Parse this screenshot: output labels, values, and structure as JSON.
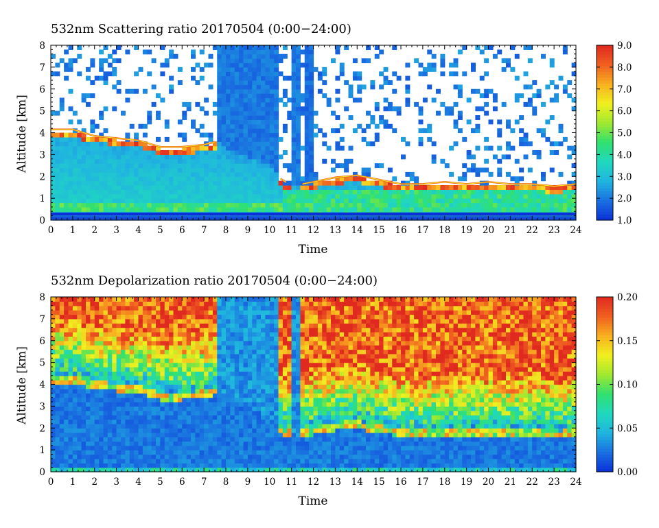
{
  "chart_data": [
    {
      "type": "heatmap",
      "title": "532nm Scattering ratio  20170504 (0:00−24:00)",
      "xlabel": "Time",
      "ylabel": "Altitude [km]",
      "xlim": [
        0,
        24
      ],
      "ylim": [
        0,
        8
      ],
      "x_ticks": [
        "0",
        "1",
        "2",
        "3",
        "4",
        "5",
        "6",
        "7",
        "8",
        "9",
        "10",
        "11",
        "12",
        "13",
        "14",
        "15",
        "16",
        "17",
        "18",
        "19",
        "20",
        "21",
        "22",
        "23",
        "24"
      ],
      "y_ticks": [
        "0",
        "1",
        "2",
        "3",
        "4",
        "5",
        "6",
        "7",
        "8"
      ],
      "colorbar": {
        "range": [
          1.0,
          9.0
        ],
        "ticks": [
          "1.0",
          "2.0",
          "3.0",
          "4.0",
          "5.0",
          "6.0",
          "7.0",
          "8.0",
          "9.0"
        ],
        "colormap": [
          "#0a30d8",
          "#1a6fe0",
          "#20b4e0",
          "#20d8c0",
          "#30e070",
          "#a0e830",
          "#f0f020",
          "#f8b020",
          "#f06020",
          "#e02a20"
        ]
      },
      "masked_color": "#ffffff",
      "features": {
        "boundary_layer_top_km": [
          [
            0,
            4.1
          ],
          [
            1,
            4.1
          ],
          [
            2,
            3.8
          ],
          [
            3,
            3.7
          ],
          [
            4,
            3.6
          ],
          [
            5,
            3.3
          ],
          [
            6,
            3.3
          ],
          [
            7,
            3.4
          ],
          [
            7.8,
            3.6
          ],
          [
            8,
            3.2
          ],
          [
            10,
            2.6
          ],
          [
            10.6,
            1.7
          ],
          [
            11.5,
            1.6
          ],
          [
            12,
            1.7
          ],
          [
            13,
            1.9
          ],
          [
            14,
            2.0
          ],
          [
            15,
            1.8
          ],
          [
            16,
            1.6
          ],
          [
            17,
            1.6
          ],
          [
            18,
            1.7
          ],
          [
            19,
            1.6
          ],
          [
            20,
            1.7
          ],
          [
            21,
            1.6
          ],
          [
            22,
            1.6
          ],
          [
            23,
            1.5
          ],
          [
            24,
            1.6
          ]
        ],
        "cloud_layers": [
          {
            "start_h": 0.0,
            "end_h": 7.6,
            "base_km": 3.3,
            "top_km": 8.0
          },
          {
            "start_h": 10.5,
            "end_h": 11.7,
            "base_km": 1.8,
            "top_km": 8.0
          },
          {
            "start_h": 12.0,
            "end_h": 21.0,
            "base_km": 1.5,
            "top_km": 8.0
          },
          {
            "start_h": 21.0,
            "end_h": 24.0,
            "base_km": 1.6,
            "top_km": 8.0
          }
        ],
        "clear_periods_h": [
          [
            7.6,
            10.5
          ],
          [
            11.0,
            11.5
          ]
        ]
      }
    },
    {
      "type": "heatmap",
      "title": "532nm Depolarization ratio  20170504 (0:00−24:00)",
      "xlabel": "Time",
      "ylabel": "Altitude [km]",
      "xlim": [
        0,
        24
      ],
      "ylim": [
        0,
        8
      ],
      "x_ticks": [
        "0",
        "1",
        "2",
        "3",
        "4",
        "5",
        "6",
        "7",
        "8",
        "9",
        "10",
        "11",
        "12",
        "13",
        "14",
        "15",
        "16",
        "17",
        "18",
        "19",
        "20",
        "21",
        "22",
        "23",
        "24"
      ],
      "y_ticks": [
        "0",
        "1",
        "2",
        "3",
        "4",
        "5",
        "6",
        "7",
        "8"
      ],
      "colorbar": {
        "range": [
          0.0,
          0.2
        ],
        "ticks": [
          "0.00",
          "0.05",
          "0.10",
          "0.15",
          "0.20"
        ],
        "colormap": [
          "#0a30d8",
          "#1a6fe0",
          "#20b4e0",
          "#20d8c0",
          "#30e070",
          "#a0e830",
          "#f0f020",
          "#f8b020",
          "#f06020",
          "#e02a20"
        ]
      }
    }
  ]
}
